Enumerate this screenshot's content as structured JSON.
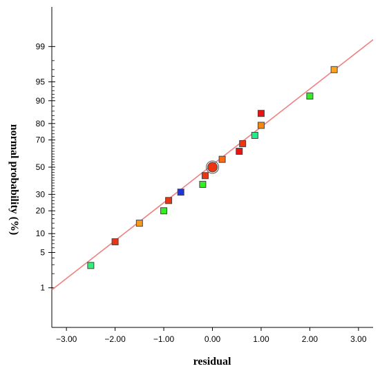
{
  "chart_data": {
    "type": "scatter",
    "title": "",
    "xlabel": "residual",
    "ylabel": "normal probability (%)",
    "xlim": [
      -3.3,
      3.3
    ],
    "x_ticks": [
      -3.0,
      -2.0,
      -1.0,
      0.0,
      1.0,
      2.0,
      3.0
    ],
    "x_tick_labels": [
      "−3.00",
      "−2.00",
      "−1.00",
      "0.00",
      "1.00",
      "2.00",
      "3.00"
    ],
    "y_scale": "normal-probability",
    "ylim": [
      0.1,
      99.9
    ],
    "y_ticks_labeled": [
      1,
      5,
      10,
      20,
      30,
      50,
      70,
      80,
      90,
      95,
      99
    ],
    "y_tick_labels": [
      "1",
      "5",
      "10",
      "20",
      "30",
      "50",
      "70",
      "80",
      "90",
      "95",
      "99"
    ],
    "y_ticks_minor": [
      2,
      3,
      4,
      6,
      7,
      8,
      9,
      12,
      14,
      16,
      18,
      22,
      24,
      26,
      28,
      32,
      34,
      36,
      38,
      40,
      42,
      44,
      46,
      48,
      52,
      54,
      56,
      58,
      60,
      62,
      64,
      66,
      68,
      72,
      74,
      76,
      78,
      82,
      84,
      86,
      88,
      91,
      92,
      93,
      94,
      96,
      97,
      98
    ],
    "reference_line": {
      "color": "#f08080",
      "points": [
        [
          -3.3,
          0.9
        ],
        [
          3.3,
          99.3
        ]
      ]
    },
    "points": [
      {
        "x": -2.5,
        "y": 2.9,
        "color": "#33ee77",
        "marker": "square"
      },
      {
        "x": -2.0,
        "y": 7.5,
        "color": "#ee3311",
        "marker": "square"
      },
      {
        "x": -1.5,
        "y": 14.0,
        "color": "#f59a1c",
        "marker": "square"
      },
      {
        "x": -1.0,
        "y": 20.0,
        "color": "#33ee22",
        "marker": "square"
      },
      {
        "x": -0.9,
        "y": 26.0,
        "color": "#ee3311",
        "marker": "square"
      },
      {
        "x": -0.65,
        "y": 31.5,
        "color": "#1f33dd",
        "marker": "square"
      },
      {
        "x": -0.2,
        "y": 37.0,
        "color": "#33ee22",
        "marker": "square"
      },
      {
        "x": -0.15,
        "y": 43.5,
        "color": "#ee3311",
        "marker": "square"
      },
      {
        "x": 0.0,
        "y": 50.0,
        "color": "#ee3311",
        "marker": "circle"
      },
      {
        "x": 0.2,
        "y": 56.0,
        "color": "#ff6a11",
        "marker": "square"
      },
      {
        "x": 0.55,
        "y": 62.0,
        "color": "#ee1111",
        "marker": "square"
      },
      {
        "x": 0.62,
        "y": 67.5,
        "color": "#ee3311",
        "marker": "square"
      },
      {
        "x": 0.87,
        "y": 73.0,
        "color": "#22ee88",
        "marker": "square"
      },
      {
        "x": 1.0,
        "y": 79.0,
        "color": "#f58811",
        "marker": "square"
      },
      {
        "x": 1.0,
        "y": 85.0,
        "color": "#ee1111",
        "marker": "square"
      },
      {
        "x": 2.0,
        "y": 91.5,
        "color": "#33ee22",
        "marker": "square"
      },
      {
        "x": 2.5,
        "y": 97.0,
        "color": "#ffa51c",
        "marker": "square"
      }
    ]
  }
}
